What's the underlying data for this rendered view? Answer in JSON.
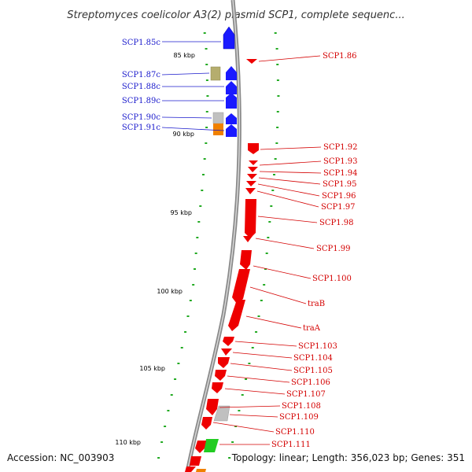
{
  "title": "Streptomyces coelicolor A3(2) plasmid SCP1, complete sequenc...",
  "footer": {
    "accession": "Accession: NC_003903",
    "topology": "Topology: linear; Length: 356,023 bp; Genes: 351"
  },
  "kbp_labels": [
    "85 kbp",
    "90 kbp",
    "95 kbp",
    "100 kbp",
    "105 kbp",
    "110 kbp"
  ],
  "colors": {
    "reverse_strand": "#1a1aff",
    "forward_strand": "#ee0000",
    "khaki": "#b5ad6e",
    "grey": "#c0c0c0",
    "orange": "#f08000",
    "green": "#22cc22",
    "tick": "#22aa22",
    "backbone": "#8a8a8a"
  },
  "left_genes": [
    "SCP1.85c",
    "SCP1.87c",
    "SCP1.88c",
    "SCP1.89c",
    "SCP1.90c",
    "SCP1.91c"
  ],
  "right_genes": [
    "SCP1.86",
    "SCP1.92",
    "SCP1.93",
    "SCP1.94",
    "SCP1.95",
    "SCP1.96",
    "SCP1.97",
    "SCP1.98",
    "SCP1.99",
    "SCP1.100",
    "traB",
    "traA",
    "SCP1.103",
    "SCP1.104",
    "SCP1.105",
    "SCP1.106",
    "SCP1.107",
    "SCP1.108",
    "SCP1.109",
    "SCP1.110",
    "SCP1.111"
  ]
}
